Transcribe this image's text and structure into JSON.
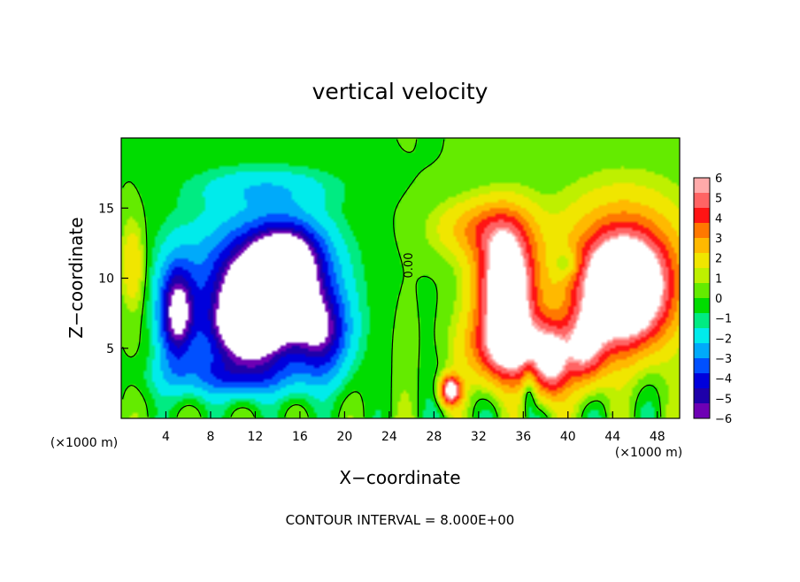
{
  "chart_data": {
    "type": "heatmap",
    "title": "vertical velocity",
    "xlabel": "X−coordinate",
    "ylabel": "Z−coordinate",
    "x_unit": "(×1000 m)",
    "xlim": [
      0,
      50
    ],
    "ylim": [
      0,
      20
    ],
    "x_ticks": [
      4,
      8,
      12,
      16,
      20,
      24,
      28,
      32,
      36,
      40,
      44,
      48
    ],
    "y_ticks": [
      5,
      10,
      15
    ],
    "colorbar": {
      "levels": [
        -6,
        -5,
        -4,
        -3,
        -2,
        -1,
        0,
        1,
        2,
        3,
        4,
        5,
        6
      ],
      "labels": [
        "6",
        "5",
        "4",
        "3",
        "2",
        "1",
        "0",
        "−1",
        "−2",
        "−3",
        "−4",
        "−5",
        "−6"
      ],
      "position": "right"
    },
    "contour_label": "0.00",
    "footer": "CONTOUR INTERVAL = 8.000E+00",
    "field_features": [
      {
        "x": 13,
        "z": 8.5,
        "sx": 4.5,
        "sz": 3.6,
        "w": -10
      },
      {
        "x": 11,
        "z": 6.0,
        "sx": 3.5,
        "sz": 2.5,
        "w": -5
      },
      {
        "x": 15,
        "z": 11.5,
        "sx": 3.0,
        "sz": 2.5,
        "w": -5
      },
      {
        "x": 12,
        "z": 11.5,
        "sx": 6.5,
        "sz": 4.0,
        "w": -2.5
      },
      {
        "x": 5,
        "z": 7.5,
        "sx": 1.6,
        "sz": 3.5,
        "w": -7
      },
      {
        "x": 18,
        "z": 6.0,
        "sx": 2.5,
        "sz": 3.0,
        "w": -5
      },
      {
        "x": 10,
        "z": 3.0,
        "sx": 6.0,
        "sz": 1.5,
        "w": -3
      },
      {
        "x": 13,
        "z": 16.5,
        "sx": 6.0,
        "sz": 1.4,
        "w": -1.5
      },
      {
        "x": 34.5,
        "z": 9.5,
        "sx": 2.5,
        "sz": 4.0,
        "w": 10
      },
      {
        "x": 35,
        "z": 5.0,
        "sx": 3.5,
        "sz": 2.5,
        "w": 7
      },
      {
        "x": 32.5,
        "z": 13.5,
        "sx": 4.0,
        "sz": 2.0,
        "w": 3
      },
      {
        "x": 29.5,
        "z": 2.0,
        "sx": 0.9,
        "sz": 1.0,
        "w": 8
      },
      {
        "x": 45,
        "z": 9.0,
        "sx": 3.8,
        "sz": 3.8,
        "w": 12
      },
      {
        "x": 41.5,
        "z": 5.0,
        "sx": 1.8,
        "sz": 2.5,
        "w": 6
      },
      {
        "x": 45,
        "z": 12.0,
        "sx": 6.0,
        "sz": 4.5,
        "w": 2.5
      },
      {
        "x": 38.5,
        "z": 4.0,
        "sx": 1.5,
        "sz": 2.5,
        "w": 6
      },
      {
        "x": 40,
        "z": 11.0,
        "sx": 1.2,
        "sz": 1.0,
        "w": -2
      },
      {
        "x": 36.5,
        "z": 2.5,
        "sx": 0.6,
        "sz": 1.8,
        "w": -2
      },
      {
        "x": 1.0,
        "z": 11.0,
        "sx": 1.0,
        "sz": 3.0,
        "w": 2
      }
    ]
  }
}
